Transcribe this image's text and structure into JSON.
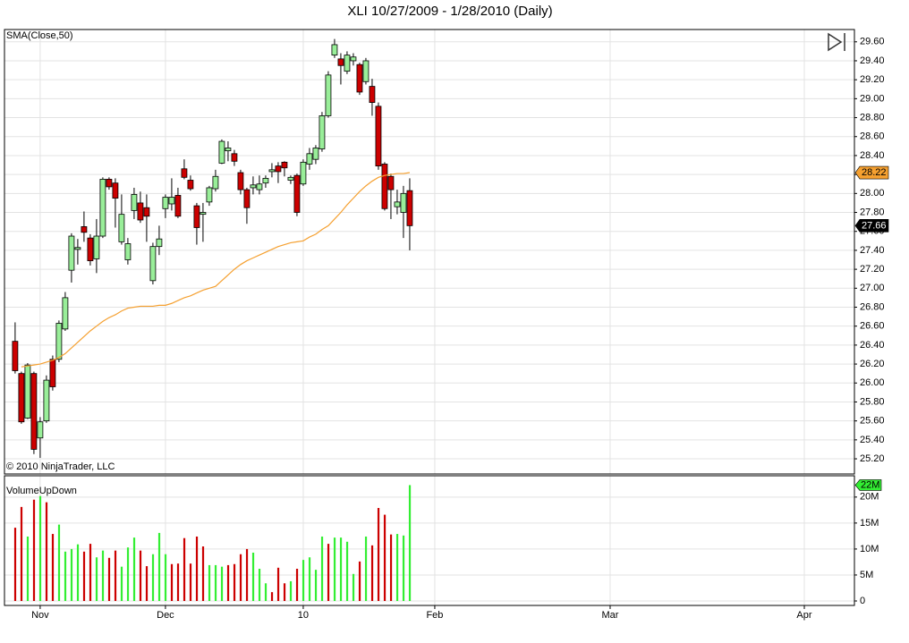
{
  "chart_data": [
    {
      "type": "candlestick",
      "title": "XLI  10/27/2009 - 1/28/2010 (Daily)",
      "footer": "© 2010 NinjaTrader, LLC",
      "up_color": "#99ee99",
      "down_color": "#cc0000",
      "open": [
        26.44,
        26.1,
        25.63,
        26.1,
        25.42,
        25.6,
        26.25,
        26.25,
        26.57,
        27.19,
        27.41,
        27.65,
        27.53,
        27.31,
        27.55,
        28.15,
        28.11,
        27.49,
        27.3,
        27.82,
        27.9,
        27.85,
        27.08,
        27.44,
        27.84,
        27.89,
        27.98,
        28.26,
        28.14,
        27.87,
        27.78,
        27.91,
        28.05,
        28.32,
        28.45,
        28.42,
        28.22,
        28.04,
        28.06,
        28.04,
        28.11,
        28.23,
        28.29,
        28.33,
        28.14,
        28.19,
        28.1,
        28.31,
        28.36,
        28.47,
        28.82,
        29.46,
        29.42,
        29.29,
        29.4,
        29.36,
        29.18,
        29.13,
        28.92,
        28.31,
        28.18,
        27.86,
        27.8,
        28.03
      ],
      "high": [
        26.64,
        26.12,
        26.21,
        26.12,
        25.64,
        26.08,
        26.29,
        26.66,
        26.96,
        27.58,
        27.52,
        27.81,
        27.57,
        27.73,
        28.17,
        28.17,
        28.16,
        27.99,
        27.53,
        28.06,
        28.02,
        27.99,
        27.48,
        27.66,
        27.99,
        28.16,
        28.06,
        28.36,
        28.19,
        27.9,
        27.9,
        28.08,
        28.25,
        28.57,
        28.55,
        28.46,
        28.25,
        28.06,
        28.18,
        28.19,
        28.19,
        28.32,
        28.33,
        28.34,
        28.19,
        28.21,
        28.36,
        28.48,
        28.51,
        28.86,
        29.29,
        29.63,
        29.48,
        29.5,
        29.48,
        29.38,
        29.43,
        29.21,
        28.96,
        28.33,
        28.21,
        28.04,
        28.08,
        28.16
      ],
      "low": [
        26.1,
        25.57,
        25.62,
        25.25,
        25.21,
        25.58,
        25.92,
        26.22,
        26.55,
        27.06,
        27.25,
        27.49,
        27.24,
        27.16,
        27.53,
        28.04,
        27.64,
        27.46,
        27.25,
        27.73,
        27.69,
        27.49,
        27.04,
        27.35,
        27.74,
        27.82,
        27.74,
        28.15,
        28.03,
        27.46,
        27.49,
        27.87,
        28.02,
        28.31,
        28.34,
        28.29,
        27.99,
        27.68,
        27.99,
        27.99,
        28.06,
        28.17,
        28.11,
        28.18,
        28.1,
        27.76,
        28.08,
        28.25,
        28.31,
        28.44,
        28.8,
        29.43,
        29.15,
        29.26,
        29.35,
        29.04,
        29.15,
        28.82,
        28.25,
        27.82,
        27.73,
        27.78,
        27.53,
        27.4
      ],
      "close": [
        26.13,
        25.59,
        26.19,
        25.3,
        25.59,
        26.03,
        25.96,
        26.63,
        26.9,
        27.55,
        27.43,
        27.59,
        27.29,
        27.55,
        28.15,
        28.07,
        27.95,
        27.78,
        27.47,
        27.99,
        27.72,
        27.76,
        27.44,
        27.52,
        27.96,
        27.96,
        27.76,
        28.17,
        28.05,
        27.64,
        27.8,
        28.06,
        28.18,
        28.55,
        28.48,
        28.34,
        28.04,
        27.85,
        28.09,
        28.1,
        28.16,
        28.25,
        28.23,
        28.27,
        28.17,
        27.8,
        28.33,
        28.42,
        28.48,
        28.82,
        29.25,
        29.57,
        29.35,
        29.46,
        29.44,
        29.07,
        29.4,
        28.96,
        28.29,
        27.84,
        28.04,
        27.91,
        28.0,
        27.66
      ],
      "series": [
        {
          "name": "SMA(Close,50)",
          "color": "#f5a030",
          "values": [
            null,
            26.17,
            26.18,
            26.19,
            26.2,
            26.22,
            26.24,
            26.27,
            26.31,
            26.37,
            26.43,
            26.49,
            26.55,
            26.6,
            26.65,
            26.69,
            26.72,
            26.76,
            26.79,
            26.8,
            26.81,
            26.81,
            26.81,
            26.82,
            26.82,
            26.84,
            26.87,
            26.9,
            26.92,
            26.95,
            26.98,
            27.0,
            27.02,
            27.08,
            27.14,
            27.2,
            27.25,
            27.29,
            27.32,
            27.35,
            27.38,
            27.41,
            27.44,
            27.46,
            27.48,
            27.49,
            27.5,
            27.54,
            27.57,
            27.62,
            27.66,
            27.73,
            27.8,
            27.88,
            27.95,
            28.02,
            28.08,
            28.13,
            28.17,
            28.19,
            28.2,
            28.21,
            28.21,
            28.22
          ]
        }
      ],
      "sma_last": 28.22,
      "last_close": 27.66,
      "xlim": [
        -1.7,
        134
      ],
      "ylim": [
        25.04,
        29.73
      ],
      "grid": true,
      "yticks": [
        {
          "value": 25.2,
          "label": "25.20"
        },
        {
          "value": 25.4,
          "label": "25.40"
        },
        {
          "value": 25.6,
          "label": "25.60"
        },
        {
          "value": 25.8,
          "label": "25.80"
        },
        {
          "value": 26,
          "label": "26.00"
        },
        {
          "value": 26.2,
          "label": "26.20"
        },
        {
          "value": 26.4,
          "label": "26.40"
        },
        {
          "value": 26.6,
          "label": "26.60"
        },
        {
          "value": 26.8,
          "label": "26.80"
        },
        {
          "value": 27,
          "label": "27.00"
        },
        {
          "value": 27.2,
          "label": "27.20"
        },
        {
          "value": 27.4,
          "label": "27.40"
        },
        {
          "value": 27.6,
          "label": "27.60"
        },
        {
          "value": 27.8,
          "label": "27.80"
        },
        {
          "value": 28,
          "label": "28.00"
        },
        {
          "value": 28.2,
          "label": "28.20"
        },
        {
          "value": 28.4,
          "label": "28.40"
        },
        {
          "value": 28.6,
          "label": "28.60"
        },
        {
          "value": 28.8,
          "label": "28.80"
        },
        {
          "value": 29,
          "label": "29.00"
        },
        {
          "value": 29.2,
          "label": "29.20"
        },
        {
          "value": 29.4,
          "label": "29.40"
        },
        {
          "value": 29.6,
          "label": "29.60"
        }
      ]
    },
    {
      "type": "bar",
      "title": "VolumeUpDown",
      "up_color": "#33ee33",
      "down_color": "#cc0000",
      "values": [
        14.1,
        18.1,
        12.4,
        19.5,
        20.2,
        19.0,
        12.9,
        14.7,
        9.5,
        10.0,
        10.9,
        9.5,
        11.0,
        8.4,
        9.7,
        8.3,
        9.7,
        6.6,
        10.3,
        12.2,
        9.7,
        6.7,
        9.0,
        13.1,
        9.0,
        7.1,
        7.2,
        12.1,
        7.2,
        12.4,
        10.5,
        6.9,
        6.9,
        6.6,
        6.9,
        7.1,
        9.0,
        10.0,
        9.3,
        6.2,
        3.4,
        1.7,
        6.4,
        3.4,
        3.8,
        6.2,
        7.9,
        8.4,
        6.0,
        12.4,
        11.0,
        12.2,
        12.2,
        11.4,
        5.2,
        7.6,
        12.4,
        10.7,
        17.9,
        16.6,
        12.8,
        12.9,
        12.6,
        22.3
      ],
      "up": [
        false,
        false,
        true,
        false,
        true,
        false,
        false,
        true,
        true,
        true,
        true,
        false,
        false,
        true,
        true,
        false,
        false,
        true,
        true,
        true,
        false,
        false,
        true,
        true,
        true,
        false,
        false,
        false,
        false,
        false,
        false,
        true,
        true,
        true,
        false,
        false,
        false,
        false,
        true,
        true,
        true,
        false,
        false,
        false,
        true,
        false,
        true,
        true,
        true,
        true,
        false,
        true,
        true,
        true,
        true,
        false,
        true,
        false,
        false,
        false,
        false,
        true,
        true,
        true
      ],
      "last_value_label": "22M",
      "xlim": [
        -1.7,
        134
      ],
      "ylim": [
        -0.86,
        24.1
      ],
      "yticks": [
        0,
        {
          "value": 5,
          "label": "5M"
        },
        {
          "value": 10,
          "label": "10M"
        },
        {
          "value": 15,
          "label": "15M"
        },
        {
          "value": 20,
          "label": "20M"
        }
      ],
      "xticks": [
        {
          "value": 4,
          "label": "Nov"
        },
        {
          "value": 24,
          "label": "Dec"
        },
        {
          "value": 46,
          "label": "10"
        },
        {
          "value": 67,
          "label": "Feb"
        },
        {
          "value": 95,
          "label": "Mar"
        },
        {
          "value": 126,
          "label": "Apr"
        }
      ],
      "grid": true
    }
  ]
}
